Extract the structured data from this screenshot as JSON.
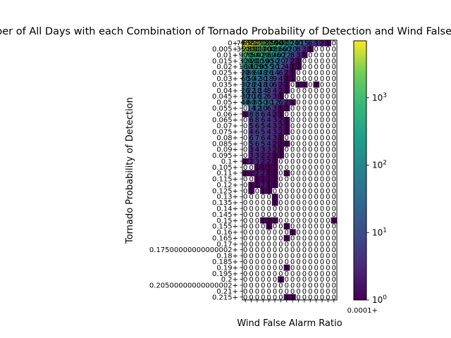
{
  "chart_data": {
    "type": "heatmap",
    "title": "Number of All Days with each Combination of Tornado Probability of Detection and Wind False Alarm Ratio",
    "xlabel": "Wind False Alarm Ratio",
    "ylabel": "Tornado Probability of Detection",
    "y_categories": [
      "0+",
      "0.005+",
      "0.01+",
      "0.015+",
      "0.02+",
      "0.025+",
      "0.03+",
      "0.035+",
      "0.04+",
      "0.045+",
      "0.05+",
      "0.055+",
      "0.06+",
      "0.065+",
      "0.07+",
      "0.075+",
      "0.08+",
      "0.085+",
      "0.09+",
      "0.095+",
      "0.1+",
      "0.105+",
      "0.11+",
      "0.115+",
      "0.12+",
      "0.125+",
      "0.13+",
      "0.135+",
      "0.14+",
      "0.145+",
      "0.15+",
      "0.155+",
      "0.16+",
      "0.165+",
      "0.17+",
      "0.17500000000000002+",
      "0.18+",
      "0.185+",
      "0.19+",
      "0.195+",
      "0.2+",
      "0.20500000000000002+",
      "0.21+",
      "0.215+"
    ],
    "x_tick_text": "0.0001+",
    "colorbar": {
      "scale": "log",
      "range": [
        1,
        7000
      ],
      "colormap": "viridis",
      "ticks": [
        {
          "base": "10",
          "exp": "0",
          "value": 1
        },
        {
          "base": "10",
          "exp": "1",
          "value": 10
        },
        {
          "base": "10",
          "exp": "2",
          "value": 100
        },
        {
          "base": "10",
          "exp": "3",
          "value": 1000
        }
      ]
    },
    "grid": "unreadable dense cell counts; approximate counts per row across 16 columns",
    "rows_values": [
      [
        7983,
        6552,
        4321,
        2100,
        1800,
        1500,
        900,
        400,
        120,
        40,
        15,
        6,
        3,
        2,
        1,
        0
      ],
      [
        3500,
        2800,
        1900,
        1100,
        700,
        380,
        160,
        60,
        20,
        8,
        3,
        1,
        0,
        0,
        0,
        0
      ],
      [
        900,
        700,
        540,
        420,
        260,
        140,
        60,
        22,
        8,
        3,
        1,
        0,
        0,
        0,
        0,
        0
      ],
      [
        300,
        260,
        200,
        150,
        90,
        50,
        20,
        7,
        2,
        1,
        0,
        0,
        0,
        0,
        0,
        0
      ],
      [
        160,
        140,
        120,
        90,
        55,
        30,
        12,
        4,
        1,
        1,
        0,
        0,
        0,
        0,
        0,
        0
      ],
      [
        20,
        80,
        60,
        48,
        26,
        14,
        6,
        2,
        1,
        0,
        0,
        0,
        0,
        0,
        0,
        0
      ],
      [
        60,
        50,
        42,
        30,
        18,
        9,
        4,
        1,
        1,
        0,
        0,
        0,
        0,
        0,
        0,
        0
      ],
      [
        30,
        28,
        24,
        18,
        10,
        6,
        2,
        1,
        0,
        1,
        1,
        0,
        1,
        0,
        0,
        0
      ],
      [
        26,
        22,
        18,
        14,
        8,
        4,
        2,
        1,
        0,
        0,
        0,
        0,
        0,
        0,
        0,
        0
      ],
      [
        30,
        20,
        16,
        12,
        6,
        3,
        1,
        0,
        0,
        0,
        0,
        0,
        0,
        0,
        0,
        0
      ],
      [
        40,
        60,
        80,
        50,
        30,
        12,
        6,
        2,
        1,
        0,
        0,
        0,
        0,
        0,
        0,
        0
      ],
      [
        0,
        14,
        12,
        10,
        6,
        3,
        1,
        1,
        0,
        0,
        0,
        0,
        0,
        0,
        0,
        0
      ],
      [
        1,
        8,
        8,
        6,
        4,
        2,
        1,
        0,
        0,
        0,
        0,
        0,
        0,
        0,
        0,
        0
      ],
      [
        0,
        6,
        8,
        6,
        4,
        3,
        2,
        1,
        0,
        0,
        0,
        0,
        0,
        0,
        0,
        0
      ],
      [
        0,
        5,
        6,
        5,
        4,
        3,
        2,
        1,
        0,
        0,
        0,
        0,
        0,
        0,
        0,
        0
      ],
      [
        0,
        4,
        6,
        5,
        4,
        3,
        2,
        1,
        0,
        0,
        0,
        0,
        0,
        0,
        0,
        0
      ],
      [
        0,
        6,
        7,
        6,
        4,
        3,
        1,
        0,
        0,
        0,
        0,
        0,
        0,
        0,
        0,
        0
      ],
      [
        0,
        5,
        6,
        5,
        4,
        2,
        1,
        1,
        0,
        0,
        0,
        0,
        0,
        0,
        0,
        0
      ],
      [
        0,
        3,
        4,
        3,
        3,
        2,
        1,
        0,
        0,
        0,
        0,
        0,
        0,
        0,
        0,
        0
      ],
      [
        0,
        3,
        3,
        2,
        2,
        1,
        1,
        0,
        0,
        0,
        0,
        0,
        0,
        0,
        0,
        0
      ],
      [
        1,
        2,
        3,
        2,
        2,
        1,
        0,
        0,
        0,
        0,
        0,
        0,
        0,
        0,
        0,
        0
      ],
      [
        0,
        0,
        1,
        1,
        1,
        1,
        0,
        0,
        0,
        0,
        0,
        0,
        0,
        0,
        0,
        0
      ],
      [
        1,
        1,
        2,
        2,
        1,
        1,
        0,
        1,
        0,
        0,
        0,
        0,
        0,
        0,
        0,
        0
      ],
      [
        0,
        0,
        1,
        1,
        1,
        1,
        0,
        0,
        0,
        0,
        0,
        0,
        0,
        0,
        0,
        0
      ],
      [
        0,
        1,
        1,
        2,
        1,
        1,
        0,
        0,
        0,
        0,
        0,
        0,
        0,
        0,
        0,
        0
      ],
      [
        0,
        1,
        0,
        1,
        1,
        0,
        0,
        0,
        0,
        0,
        0,
        0,
        0,
        0,
        0,
        0
      ],
      [
        0,
        0,
        0,
        0,
        0,
        1,
        0,
        0,
        0,
        0,
        0,
        0,
        0,
        0,
        0,
        0
      ],
      [
        0,
        0,
        0,
        0,
        0,
        1,
        0,
        0,
        0,
        0,
        0,
        0,
        0,
        0,
        0,
        0
      ],
      [
        0,
        0,
        0,
        0,
        0,
        0,
        0,
        0,
        0,
        0,
        0,
        0,
        0,
        0,
        0,
        0
      ],
      [
        0,
        0,
        0,
        0,
        0,
        0,
        0,
        0,
        0,
        0,
        0,
        0,
        0,
        0,
        0,
        0
      ],
      [
        0,
        0,
        0,
        1,
        1,
        1,
        0,
        0,
        0,
        0,
        0,
        0,
        0,
        0,
        0,
        1
      ],
      [
        0,
        0,
        0,
        0,
        1,
        0,
        0,
        1,
        0,
        0,
        0,
        0,
        0,
        0,
        0,
        0
      ],
      [
        0,
        0,
        0,
        0,
        0,
        0,
        0,
        0,
        1,
        0,
        0,
        0,
        0,
        0,
        0,
        0
      ],
      [
        0,
        0,
        0,
        0,
        0,
        0,
        0,
        1,
        0,
        0,
        0,
        0,
        0,
        0,
        0,
        0
      ],
      [
        0,
        0,
        0,
        0,
        0,
        0,
        0,
        0,
        0,
        0,
        0,
        0,
        0,
        0,
        0,
        0
      ],
      [
        0,
        0,
        0,
        0,
        0,
        0,
        0,
        0,
        0,
        0,
        0,
        0,
        0,
        0,
        0,
        0
      ],
      [
        0,
        0,
        0,
        0,
        0,
        0,
        0,
        0,
        0,
        0,
        0,
        0,
        0,
        0,
        0,
        0
      ],
      [
        0,
        0,
        0,
        0,
        0,
        0,
        0,
        0,
        0,
        0,
        0,
        0,
        0,
        0,
        0,
        0
      ],
      [
        0,
        0,
        0,
        0,
        0,
        0,
        0,
        1,
        0,
        0,
        0,
        0,
        0,
        0,
        0,
        0
      ],
      [
        0,
        0,
        0,
        0,
        0,
        0,
        0,
        0,
        0,
        0,
        0,
        0,
        0,
        0,
        0,
        0
      ],
      [
        0,
        0,
        0,
        0,
        0,
        0,
        1,
        0,
        0,
        0,
        0,
        0,
        0,
        0,
        0,
        0
      ],
      [
        0,
        0,
        0,
        0,
        0,
        0,
        0,
        0,
        0,
        0,
        0,
        0,
        0,
        0,
        0,
        0
      ],
      [
        0,
        0,
        0,
        0,
        0,
        0,
        0,
        0,
        0,
        0,
        0,
        0,
        0,
        0,
        0,
        0
      ],
      [
        0,
        0,
        0,
        0,
        0,
        0,
        0,
        1,
        1,
        0,
        0,
        0,
        0,
        0,
        0,
        0
      ]
    ]
  }
}
